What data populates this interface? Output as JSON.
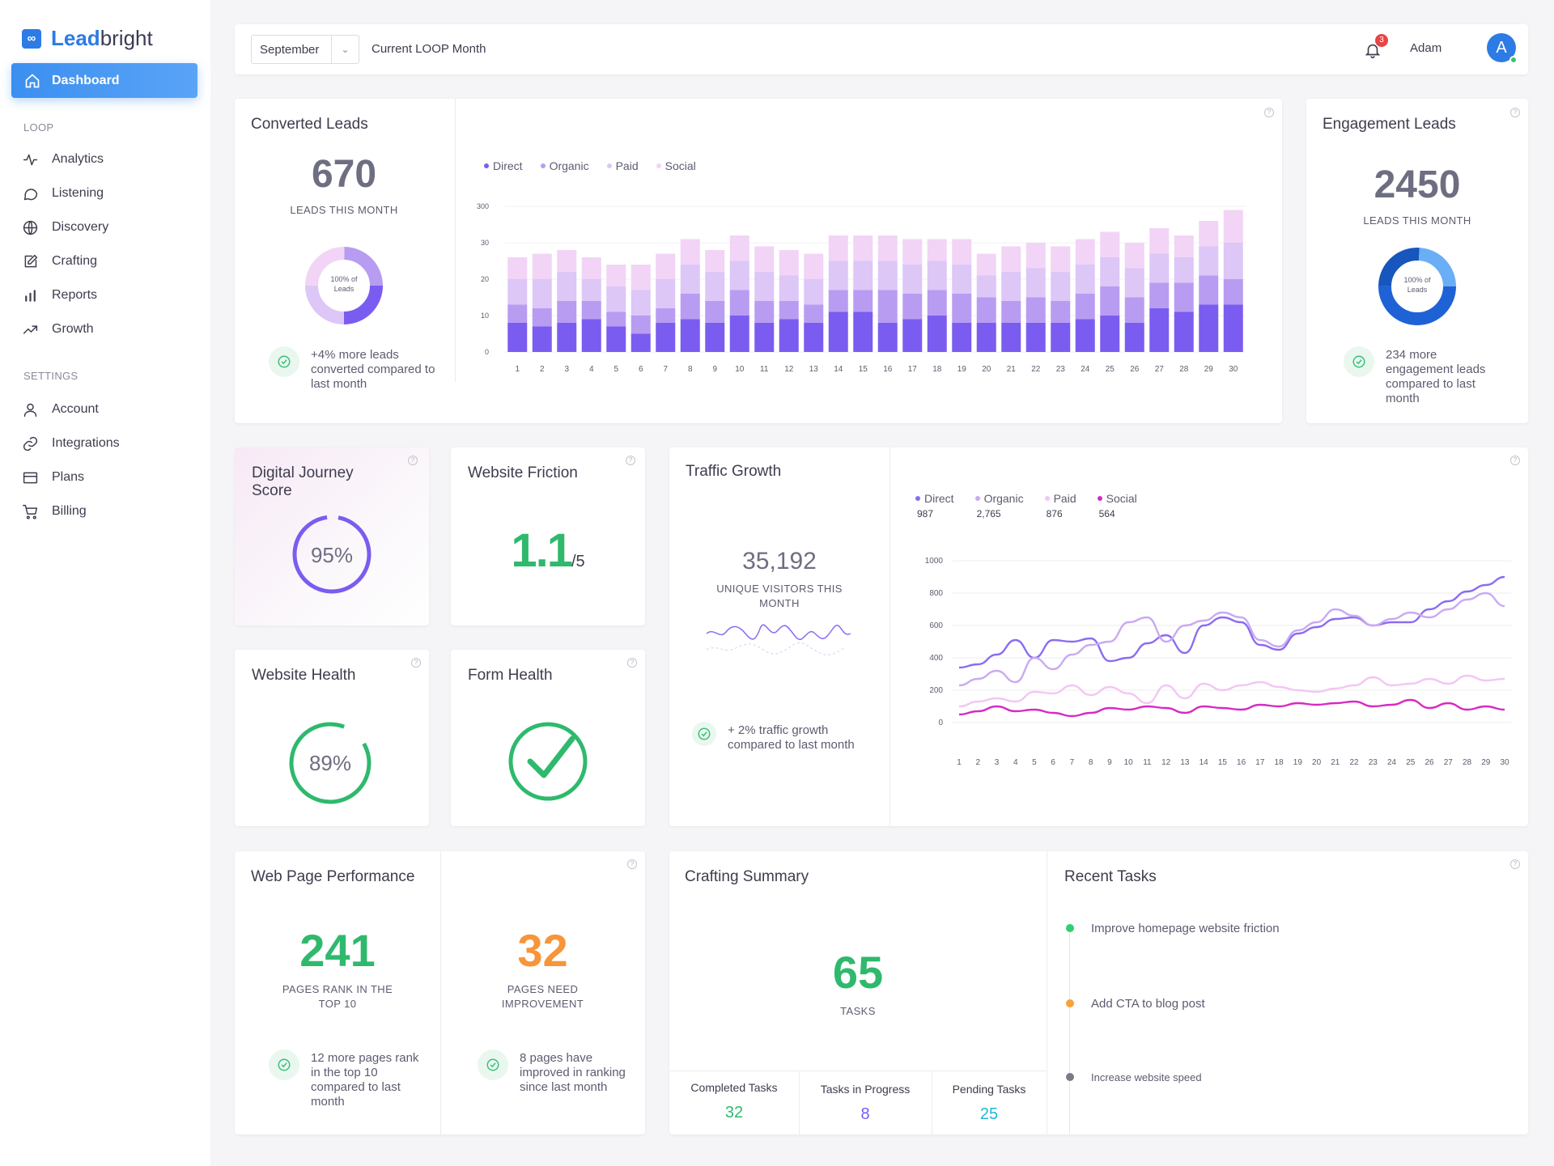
{
  "brand": {
    "logo_mark": "∞",
    "name_bold": "Lead",
    "name_rest": "bright"
  },
  "sidebar": {
    "active": {
      "label": "Dashboard",
      "icon": "home-icon"
    },
    "loop_header": "LOOP",
    "loop_items": [
      {
        "label": "Analytics",
        "icon": "activity-icon"
      },
      {
        "label": "Listening",
        "icon": "chat-bubble-icon"
      },
      {
        "label": "Discovery",
        "icon": "globe-icon"
      },
      {
        "label": "Crafting",
        "icon": "edit-icon"
      },
      {
        "label": "Reports",
        "icon": "bar-chart-icon"
      },
      {
        "label": "Growth",
        "icon": "trending-up-icon"
      }
    ],
    "settings_header": "SETTINGS",
    "settings_items": [
      {
        "label": "Account",
        "icon": "user-icon"
      },
      {
        "label": "Integrations",
        "icon": "link-icon"
      },
      {
        "label": "Plans",
        "icon": "credit-card-icon"
      },
      {
        "label": "Billing",
        "icon": "cart-icon"
      }
    ]
  },
  "topbar": {
    "month": "September",
    "month_caption": "Current LOOP Month",
    "notifications": "3",
    "user_name": "Adam",
    "avatar_initial": "A"
  },
  "converted_leads": {
    "title": "Converted Leads",
    "value": "670",
    "caption": "LEADS THIS MONTH",
    "donut_label": "100% of Leads",
    "note": "+4% more leads converted compared to last month",
    "legend": [
      "Direct",
      "Organic",
      "Paid",
      "Social"
    ],
    "colors": {
      "Direct": "#7b5cf0",
      "Organic": "#b89cf2",
      "Paid": "#dcc7f7",
      "Social": "#f2d4f6"
    }
  },
  "engagement_leads": {
    "title": "Engagement Leads",
    "value": "2450",
    "caption": "LEADS THIS MONTH",
    "donut_label": "100% of Leads",
    "note": "234 more engagement leads compared to last month"
  },
  "digital_journey": {
    "title": "Digital Journey Score",
    "value": "95%",
    "fraction": 0.95
  },
  "website_friction": {
    "title": "Website Friction",
    "value": "1.1",
    "suffix": "/5"
  },
  "website_health": {
    "title": "Website Health",
    "value": "89%",
    "fraction": 0.89
  },
  "form_health": {
    "title": "Form Health"
  },
  "traffic_growth": {
    "title": "Traffic Growth",
    "value": "35,192",
    "caption": "UNIQUE VISITORS THIS MONTH",
    "note": "+ 2% traffic growth compared to last month",
    "legend": [
      {
        "name": "Direct",
        "value": "987",
        "color": "#8b6cf0"
      },
      {
        "name": "Organic",
        "value": "2,765",
        "color": "#c9a9f3"
      },
      {
        "name": "Paid",
        "value": "876",
        "color": "#f3c6f3"
      },
      {
        "name": "Social",
        "value": "564",
        "color": "#d62bc3"
      }
    ]
  },
  "web_performance": {
    "title": "Web Page Performance",
    "left": {
      "value": "241",
      "caption": "PAGES RANK IN THE TOP 10",
      "note": "12 more pages rank in the top 10 compared to last month"
    },
    "right": {
      "value": "32",
      "caption": "PAGES NEED IMPROVEMENT",
      "note": "8 pages have improved in ranking since last month"
    }
  },
  "crafting_summary": {
    "title": "Crafting Summary",
    "value": "65",
    "caption": "TASKS",
    "cols": [
      {
        "label": "Completed Tasks",
        "value": "32",
        "color": "#2fb96d"
      },
      {
        "label": "Tasks in Progress",
        "value": "8",
        "color": "#7b5cf0"
      },
      {
        "label": "Pending Tasks",
        "value": "25",
        "color": "#1fb8d6"
      }
    ]
  },
  "recent_tasks": {
    "title": "Recent Tasks",
    "items": [
      {
        "label": "Improve homepage website friction",
        "color": "#2fcf72"
      },
      {
        "label": "Add CTA to blog post",
        "color": "#f7a23a"
      },
      {
        "label": "Increase website speed",
        "color": "#7a7a88"
      }
    ]
  },
  "chart_data": [
    {
      "type": "bar",
      "stacked": true,
      "x": [
        1,
        2,
        3,
        4,
        5,
        6,
        7,
        8,
        9,
        10,
        11,
        12,
        13,
        14,
        15,
        16,
        17,
        18,
        19,
        20,
        21,
        22,
        23,
        24,
        25,
        26,
        27,
        28,
        29,
        30
      ],
      "y_tick_labels": [
        "0",
        "10",
        "20",
        "30",
        "300"
      ],
      "series": [
        {
          "name": "Direct",
          "values": [
            8,
            7,
            8,
            9,
            7,
            5,
            8,
            9,
            8,
            10,
            8,
            9,
            8,
            11,
            11,
            8,
            9,
            10,
            8,
            8,
            8,
            8,
            8,
            9,
            10,
            8,
            12,
            11,
            13,
            13
          ]
        },
        {
          "name": "Organic",
          "values": [
            5,
            5,
            6,
            5,
            4,
            5,
            4,
            7,
            6,
            7,
            6,
            5,
            5,
            6,
            6,
            9,
            7,
            7,
            8,
            7,
            6,
            7,
            6,
            7,
            8,
            7,
            7,
            8,
            8,
            7
          ]
        },
        {
          "name": "Paid",
          "values": [
            7,
            8,
            8,
            6,
            7,
            7,
            8,
            8,
            8,
            8,
            8,
            7,
            7,
            8,
            8,
            8,
            8,
            8,
            8,
            6,
            8,
            8,
            8,
            8,
            8,
            8,
            8,
            7,
            8,
            10
          ]
        },
        {
          "name": "Social",
          "values": [
            6,
            7,
            6,
            6,
            6,
            7,
            7,
            7,
            6,
            7,
            7,
            7,
            7,
            7,
            7,
            7,
            7,
            6,
            7,
            6,
            7,
            7,
            7,
            7,
            7,
            7,
            7,
            6,
            7,
            9
          ]
        }
      ]
    },
    {
      "type": "line",
      "x": [
        1,
        2,
        3,
        4,
        5,
        6,
        7,
        8,
        9,
        10,
        11,
        12,
        13,
        14,
        15,
        16,
        17,
        18,
        19,
        20,
        21,
        22,
        23,
        24,
        25,
        26,
        27,
        28,
        29,
        30
      ],
      "y_ticks": [
        0,
        200,
        400,
        600,
        800,
        1000
      ],
      "series": [
        {
          "name": "Direct",
          "values": [
            340,
            360,
            420,
            510,
            400,
            510,
            500,
            520,
            380,
            400,
            490,
            540,
            430,
            600,
            650,
            620,
            480,
            450,
            550,
            590,
            640,
            650,
            600,
            620,
            620,
            700,
            750,
            810,
            850,
            900
          ]
        },
        {
          "name": "Organic",
          "values": [
            230,
            270,
            320,
            250,
            400,
            330,
            420,
            480,
            500,
            620,
            650,
            500,
            600,
            630,
            680,
            650,
            510,
            470,
            570,
            620,
            700,
            660,
            600,
            640,
            680,
            650,
            700,
            760,
            800,
            720
          ]
        },
        {
          "name": "Paid",
          "values": [
            100,
            130,
            150,
            130,
            190,
            180,
            230,
            170,
            220,
            180,
            120,
            230,
            150,
            240,
            200,
            230,
            250,
            220,
            200,
            190,
            210,
            230,
            280,
            230,
            240,
            270,
            240,
            290,
            260,
            270
          ]
        },
        {
          "name": "Social",
          "values": [
            50,
            70,
            100,
            70,
            80,
            60,
            40,
            60,
            90,
            80,
            100,
            90,
            60,
            100,
            90,
            80,
            110,
            100,
            120,
            110,
            120,
            130,
            100,
            110,
            140,
            90,
            120,
            80,
            100,
            80
          ]
        }
      ]
    }
  ]
}
